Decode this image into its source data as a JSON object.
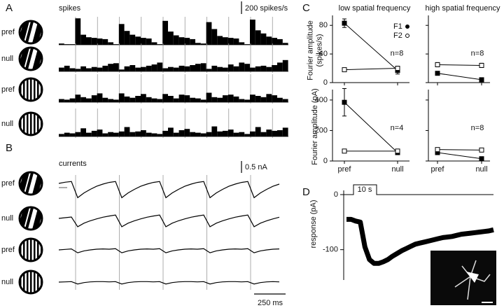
{
  "chart_data": [
    {
      "panel": "A",
      "type": "bar",
      "title": "spikes",
      "scale_bar": {
        "value": 200,
        "label": "200 spikes/s"
      },
      "series": [
        {
          "name": "pref",
          "values": [
            20,
            10,
            10,
            420,
            160,
            120,
            110,
            100,
            90,
            40,
            10,
            330,
            220,
            160,
            130,
            110,
            100,
            40,
            10,
            380,
            210,
            150,
            120,
            110,
            90,
            30,
            20,
            360,
            250,
            140,
            120,
            110,
            100,
            40,
            10,
            400,
            230,
            180,
            130,
            110,
            90,
            30
          ]
        },
        {
          "name": "null",
          "values": [
            60,
            90,
            50,
            40,
            80,
            50,
            70,
            60,
            90,
            120,
            130,
            30,
            80,
            100,
            60,
            70,
            90,
            110,
            140,
            50,
            70,
            60,
            90,
            80,
            100,
            120,
            130,
            40,
            90,
            70,
            60,
            110,
            80,
            140,
            120,
            60,
            80,
            90,
            70,
            100,
            140,
            180
          ]
        },
        {
          "name": "pref",
          "values": [
            50,
            40,
            60,
            120,
            80,
            60,
            110,
            140,
            70,
            50,
            40,
            140,
            90,
            70,
            100,
            130,
            80,
            60,
            50,
            130,
            100,
            60,
            120,
            110,
            70,
            60,
            40,
            150,
            80,
            70,
            110,
            120,
            90,
            50,
            40,
            120,
            100,
            80,
            130,
            110,
            70,
            50
          ]
        },
        {
          "name": "null",
          "values": [
            40,
            60,
            50,
            70,
            130,
            60,
            90,
            110,
            50,
            70,
            60,
            80,
            150,
            70,
            80,
            100,
            60,
            50,
            40,
            90,
            140,
            60,
            100,
            120,
            70,
            60,
            50,
            70,
            160,
            80,
            90,
            110,
            60,
            70,
            40,
            80,
            150,
            70,
            110,
            90,
            100,
            140
          ]
        }
      ]
    },
    {
      "panel": "B",
      "type": "line",
      "title": "currents",
      "scale_bar": {
        "value": 0.5,
        "label": "0.5 nA"
      },
      "time_bar": {
        "value": 250,
        "label": "250 ms"
      },
      "xlim": [
        0,
        1800
      ],
      "x": [
        0,
        50,
        100,
        150,
        200,
        250,
        300,
        350,
        400,
        450,
        500,
        550,
        600,
        650,
        700,
        750,
        800,
        850,
        900,
        950,
        1000,
        1050,
        1100,
        1150,
        1200,
        1250,
        1300,
        1350,
        1400,
        1450,
        1500,
        1550,
        1600,
        1650,
        1700,
        1750
      ],
      "series": [
        {
          "name": "pref",
          "values": [
            0,
            0.05,
            0.08,
            -0.6,
            -0.4,
            -0.25,
            -0.12,
            -0.03,
            0.04,
            0.08,
            -0.6,
            -0.4,
            -0.25,
            -0.12,
            -0.03,
            0.04,
            0.08,
            -0.6,
            -0.4,
            -0.25,
            -0.12,
            -0.03,
            0.04,
            0.08,
            -0.6,
            -0.4,
            -0.25,
            -0.12,
            -0.03,
            0.04,
            0.08,
            -0.6,
            -0.4,
            -0.25,
            -0.12,
            -0.03
          ]
        },
        {
          "name": "null",
          "values": [
            0,
            0.03,
            0.06,
            -0.35,
            -0.2,
            -0.1,
            -0.02,
            0.05,
            0.1,
            0.14,
            -0.35,
            -0.2,
            -0.1,
            -0.02,
            0.05,
            0.1,
            0.14,
            -0.35,
            -0.2,
            -0.1,
            -0.02,
            0.05,
            0.1,
            0.14,
            -0.35,
            -0.2,
            -0.1,
            -0.02,
            0.05,
            0.1,
            0.14,
            -0.35,
            -0.2,
            -0.1,
            -0.02,
            0.05
          ]
        },
        {
          "name": "pref",
          "values": [
            0,
            0.02,
            0.04,
            -0.12,
            -0.04,
            0,
            0.03,
            0.04,
            0.03,
            0.05,
            -0.12,
            -0.04,
            0,
            0.03,
            0.04,
            0.03,
            0.05,
            -0.12,
            -0.04,
            0,
            0.03,
            0.04,
            0.03,
            0.05,
            -0.12,
            -0.04,
            0,
            0.03,
            0.04,
            0.03,
            0.05,
            -0.12,
            -0.04,
            0,
            0.03,
            0.04
          ]
        },
        {
          "name": "null",
          "values": [
            0,
            0.01,
            0.02,
            -0.08,
            -0.02,
            0.01,
            0.02,
            0.02,
            0.01,
            0.02,
            -0.08,
            -0.02,
            0.01,
            0.02,
            0.02,
            0.01,
            0.02,
            -0.08,
            -0.02,
            0.01,
            0.02,
            0.02,
            0.01,
            0.02,
            -0.08,
            -0.02,
            0.01,
            0.02,
            0.02,
            0.01,
            0.02,
            -0.08,
            -0.02,
            0.01,
            0.02,
            0.01
          ]
        }
      ]
    },
    {
      "panel": "C",
      "type": "errorbar",
      "column_titles": [
        "low spatial frequency",
        "high spatial frequency"
      ],
      "categories": [
        "pref",
        "null"
      ],
      "legend": [
        {
          "name": "F1",
          "marker": "filled"
        },
        {
          "name": "F2",
          "marker": "open"
        }
      ],
      "rows": [
        {
          "ylabel": [
            "Fourier amplitude",
            "(spikes/s)"
          ],
          "ylim": [
            0,
            90
          ],
          "yticks": [
            0,
            40,
            80
          ],
          "panels": [
            {
              "n_label": "n=8",
              "series": [
                {
                  "values": [
                    83,
                    17
                  ],
                  "errors": [
                    6,
                    5
                  ]
                },
                {
                  "values": [
                    18,
                    20
                  ],
                  "errors": [
                    1,
                    3
                  ]
                }
              ]
            },
            {
              "n_label": "n=8",
              "series": [
                {
                  "values": [
                    13,
                    4
                  ],
                  "errors": [
                    2,
                    1
                  ]
                },
                {
                  "values": [
                    25,
                    24
                  ],
                  "errors": [
                    3,
                    3
                  ]
                }
              ]
            }
          ]
        },
        {
          "ylabel": [
            "Fourier amplitude (pA)"
          ],
          "ylim": [
            0,
            450
          ],
          "yticks": [
            0,
            200,
            400
          ],
          "panels": [
            {
              "n_label": "n=4",
              "series": [
                {
                  "values": [
                    385,
                    55
                  ],
                  "errors": [
                    90,
                    10
                  ]
                },
                {
                  "values": [
                    65,
                    65
                  ],
                  "errors": [
                    8,
                    8
                  ]
                }
              ]
            },
            {
              "n_label": "n=8",
              "series": [
                {
                  "values": [
                    55,
                    15
                  ],
                  "errors": [
                    6,
                    3
                  ]
                },
                {
                  "values": [
                    75,
                    72
                  ],
                  "errors": [
                    6,
                    6
                  ]
                }
              ]
            }
          ]
        }
      ]
    },
    {
      "panel": "D",
      "type": "line",
      "ylabel": [
        "response (pA)"
      ],
      "stimulus_label": "10 s",
      "xlim": [
        0,
        64
      ],
      "ylim": [
        -150,
        0
      ],
      "yticks": [
        0,
        -100
      ],
      "x": [
        0,
        2,
        4,
        6,
        8,
        10,
        12,
        14,
        16,
        18,
        20,
        22,
        24,
        26,
        28,
        30,
        32,
        34,
        36,
        38,
        40,
        42,
        44,
        46,
        48,
        50,
        52,
        54,
        56,
        58,
        60,
        62,
        64
      ],
      "series": [
        {
          "values": [
            -45,
            -45,
            -48,
            -50,
            -95,
            -118,
            -125,
            -125,
            -122,
            -118,
            -112,
            -107,
            -102,
            -98,
            -94,
            -90,
            -88,
            -86,
            -84,
            -82,
            -80,
            -78,
            -77,
            -76,
            -74,
            -72,
            -71,
            -70,
            -69,
            -68,
            -67,
            -66,
            -64
          ]
        }
      ]
    }
  ]
}
